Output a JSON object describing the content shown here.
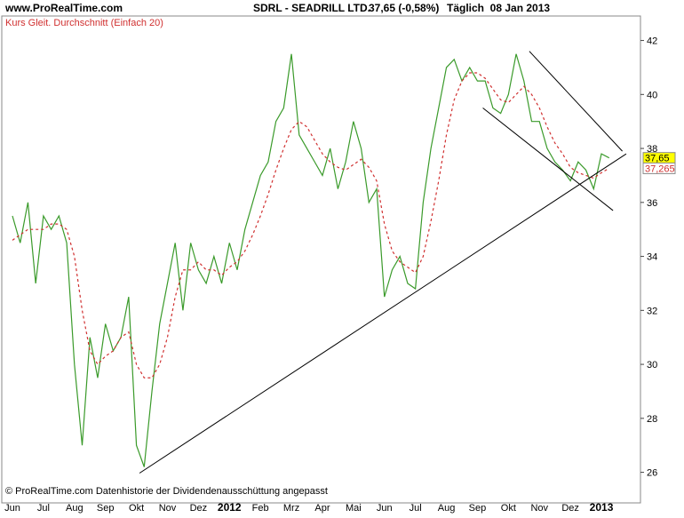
{
  "header": {
    "site": "www.ProRealTime.com",
    "instrument": "SDRL - SEADRILL LTD.",
    "quote": "37,65 (-0,58%)",
    "period": "Täglich  08 Jan 2013"
  },
  "footer": "© ProRealTime.com  Datenhistorie der Dividendenausschüttung angepasst",
  "chart_data": {
    "type": "line",
    "categories": [
      "Jun",
      null,
      null,
      null,
      "Jul",
      null,
      null,
      null,
      "Aug",
      null,
      null,
      null,
      "Sep",
      null,
      null,
      null,
      "Okt",
      null,
      null,
      null,
      "Nov",
      null,
      null,
      null,
      "Dez",
      null,
      null,
      null,
      "2012",
      null,
      null,
      null,
      "Feb",
      null,
      null,
      null,
      "Mrz",
      null,
      null,
      null,
      "Apr",
      null,
      null,
      null,
      "Mai",
      null,
      null,
      null,
      "Jun",
      null,
      null,
      null,
      "Jul",
      null,
      null,
      null,
      "Aug",
      null,
      null,
      null,
      "Sep",
      null,
      null,
      null,
      "Okt",
      null,
      null,
      null,
      "Nov",
      null,
      null,
      null,
      "Dez",
      null,
      null,
      null,
      "2013",
      null
    ],
    "series": [
      {
        "name": "Kurs",
        "color": "#3a9a2a",
        "dashed": false,
        "values": [
          35.5,
          34.5,
          36,
          33,
          35.5,
          35,
          35.5,
          34.5,
          30,
          27,
          31,
          29.5,
          31.5,
          30.5,
          31,
          32.5,
          27,
          26.2,
          29,
          31.5,
          33,
          34.5,
          32,
          34.5,
          33.5,
          33,
          34,
          33,
          34.5,
          33.5,
          35,
          36,
          37,
          37.5,
          39,
          39.5,
          41.5,
          38.5,
          38,
          37.5,
          37,
          38,
          36.5,
          37.5,
          39,
          38,
          36,
          36.5,
          32.5,
          33.5,
          34,
          33,
          32.8,
          36,
          38,
          39.5,
          41,
          41.3,
          40.5,
          41,
          40.5,
          40.5,
          39.5,
          39.3,
          40,
          41.5,
          40.5,
          39,
          39,
          38,
          37.5,
          37.2,
          36.8,
          37.5,
          37.2,
          36.5,
          37.8,
          37.65
        ]
      },
      {
        "name": "Gleit. Durchschnitt (Einfach 20)",
        "color": "#d03030",
        "dashed": true,
        "values": [
          34.6,
          34.8,
          35,
          35,
          35,
          35.2,
          35.2,
          35,
          34,
          32,
          30.5,
          30,
          30.3,
          30.5,
          31,
          31.2,
          30,
          29.5,
          29.5,
          30,
          31,
          32.5,
          33.5,
          33.5,
          33.8,
          33.5,
          33.5,
          33.3,
          33.6,
          33.8,
          34.2,
          34.8,
          35.5,
          36.3,
          37.2,
          38,
          38.7,
          39,
          38.8,
          38.3,
          37.8,
          37.5,
          37.3,
          37.2,
          37.4,
          37.6,
          37.3,
          36.8,
          35.2,
          34.2,
          33.8,
          33.6,
          33.4,
          34,
          35.3,
          36.8,
          38.5,
          39.8,
          40.5,
          40.8,
          40.8,
          40.6,
          40.2,
          39.8,
          39.7,
          40,
          40.3,
          40,
          39.5,
          38.8,
          38.2,
          37.8,
          37.3,
          37.1,
          37,
          36.9,
          37.1,
          37.265
        ]
      }
    ],
    "legend": "Kurs Gleit. Durchschnitt (Einfach 20)",
    "ylim": [
      24.9,
      43.5
    ],
    "yticks": [
      26,
      28,
      30,
      32,
      34,
      36,
      38,
      40,
      42
    ],
    "last_labels": [
      {
        "value": 37.65,
        "label": "37,65"
      },
      {
        "value": 37.265,
        "label": "37,265"
      }
    ],
    "trendlines": [
      {
        "x": [
          16.4,
          79.2
        ],
        "y": [
          25.97,
          37.8
        ]
      },
      {
        "x": [
          66.7,
          78.7
        ],
        "y": [
          41.6,
          37.9
        ]
      },
      {
        "x": [
          60.7,
          77.5
        ],
        "y": [
          39.5,
          35.7
        ]
      }
    ]
  }
}
